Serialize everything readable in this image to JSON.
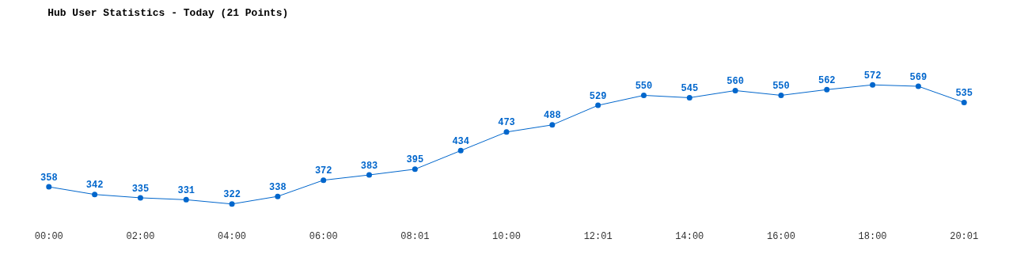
{
  "chart_data": {
    "type": "line",
    "title": "Hub User Statistics - Today (21 Points)",
    "categories": [
      "00:00",
      null,
      "02:00",
      null,
      "04:00",
      null,
      "06:00",
      null,
      "08:01",
      null,
      "10:00",
      null,
      "12:01",
      null,
      "14:00",
      null,
      "16:00",
      null,
      "18:00",
      null,
      "20:01"
    ],
    "series": [
      {
        "color": "#0066cc",
        "values": [
          358,
          342,
          335,
          331,
          322,
          338,
          372,
          383,
          395,
          434,
          473,
          488,
          529,
          550,
          545,
          560,
          550,
          562,
          572,
          569,
          535
        ]
      }
    ],
    "data_labels": true,
    "marker": "circle",
    "line_style": "solid"
  }
}
